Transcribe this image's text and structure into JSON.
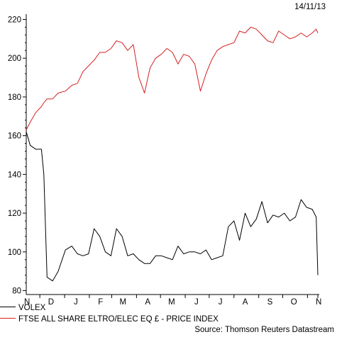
{
  "date_stamp": "14/11/13",
  "source": "Source: Thomson Reuters Datastream",
  "colors": {
    "volex": "#000000",
    "ftse": "#d62020",
    "axis": "#000000",
    "background": "#ffffff"
  },
  "chart_data": {
    "type": "line",
    "grid": false,
    "legend_position": "bottom-left",
    "x": [
      "2012-11-14",
      "2012-11-19",
      "2012-11-26",
      "2012-12-03",
      "2012-12-06",
      "2012-12-10",
      "2012-12-17",
      "2012-12-24",
      "2013-01-02",
      "2013-01-10",
      "2013-01-17",
      "2013-01-24",
      "2013-01-31",
      "2013-02-07",
      "2013-02-14",
      "2013-02-21",
      "2013-02-28",
      "2013-03-07",
      "2013-03-14",
      "2013-03-21",
      "2013-03-28",
      "2013-04-04",
      "2013-04-11",
      "2013-04-18",
      "2013-04-25",
      "2013-05-02",
      "2013-05-09",
      "2013-05-16",
      "2013-05-23",
      "2013-05-30",
      "2013-06-06",
      "2013-06-13",
      "2013-06-20",
      "2013-06-27",
      "2013-07-04",
      "2013-07-11",
      "2013-07-18",
      "2013-07-25",
      "2013-08-01",
      "2013-08-08",
      "2013-08-15",
      "2013-08-22",
      "2013-08-29",
      "2013-09-05",
      "2013-09-12",
      "2013-09-19",
      "2013-09-26",
      "2013-10-03",
      "2013-10-10",
      "2013-10-17",
      "2013-10-24",
      "2013-10-31",
      "2013-11-07",
      "2013-11-12",
      "2013-11-14"
    ],
    "series": [
      {
        "name": "VOLEX",
        "color": "#000000",
        "values": [
          162,
          155,
          153,
          153,
          140,
          87,
          85,
          90,
          101,
          103,
          99,
          98,
          99,
          112,
          108,
          100,
          98,
          112,
          108,
          98,
          99,
          96,
          94,
          94,
          98,
          98,
          97,
          96,
          103,
          99,
          100,
          100,
          99,
          101,
          96,
          97,
          98,
          113,
          116,
          106,
          120,
          113,
          117,
          126,
          115,
          119,
          118,
          120,
          116,
          118,
          127,
          123,
          122,
          118,
          88
        ]
      },
      {
        "name": "FTSE ALL SHARE ELTRO/ELEC EQ £ - PRICE INDEX",
        "color": "#d62020",
        "values": [
          163,
          167,
          172,
          175,
          177,
          179,
          179,
          182,
          183,
          186,
          187,
          193,
          196,
          199,
          203,
          203,
          205,
          209,
          208,
          204,
          207,
          190,
          182,
          195,
          200,
          202,
          205,
          203,
          197,
          202,
          201,
          197,
          183,
          192,
          199,
          204,
          206,
          207,
          208,
          214,
          213,
          216,
          215,
          212,
          209,
          208,
          214,
          212,
          210,
          211,
          213,
          211,
          213,
          215,
          213
        ]
      }
    ],
    "ylim": [
      78,
      222
    ],
    "y_ticks": [
      80,
      100,
      120,
      140,
      160,
      180,
      200,
      220
    ],
    "x_ticks": [
      {
        "label": "N",
        "date": "2012-11-15"
      },
      {
        "label": "D",
        "date": "2012-12-15"
      },
      {
        "label": "J",
        "date": "2013-01-15"
      },
      {
        "label": "F",
        "date": "2013-02-15"
      },
      {
        "label": "M",
        "date": "2013-03-15"
      },
      {
        "label": "A",
        "date": "2013-04-15"
      },
      {
        "label": "M",
        "date": "2013-05-15"
      },
      {
        "label": "J",
        "date": "2013-06-15"
      },
      {
        "label": "J",
        "date": "2013-07-15"
      },
      {
        "label": "A",
        "date": "2013-08-15"
      },
      {
        "label": "S",
        "date": "2013-09-15"
      },
      {
        "label": "O",
        "date": "2013-10-15"
      },
      {
        "label": "N",
        "date": "2013-11-15"
      }
    ]
  }
}
